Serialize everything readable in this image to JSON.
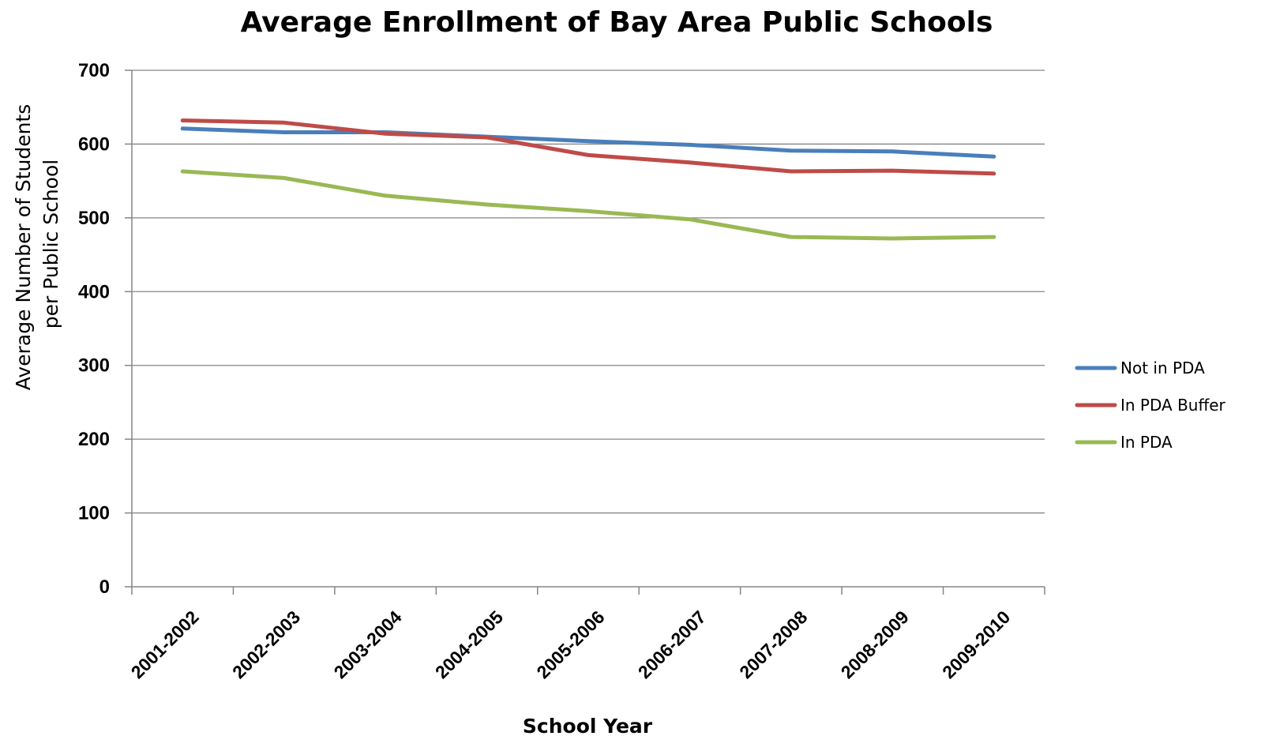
{
  "chart_data": {
    "type": "line",
    "title": "Average Enrollment of Bay Area Public Schools",
    "xlabel": "School Year",
    "ylabel_lines": [
      "Average Number of Students",
      "per Public School"
    ],
    "categories": [
      "2001-2002",
      "2002-2003",
      "2003-2004",
      "2004-2005",
      "2005-2006",
      "2006-2007",
      "2007-2008",
      "2008-2009",
      "2009-2010"
    ],
    "ylim": [
      0,
      700
    ],
    "yticks": [
      "0",
      "100",
      "200",
      "300",
      "400",
      "500",
      "600",
      "700"
    ],
    "grid": true,
    "legend_position": "right",
    "series": [
      {
        "name": "Not in PDA",
        "color": "#4a7ebb",
        "values": [
          621,
          616,
          616,
          610,
          604,
          599,
          591,
          590,
          583
        ]
      },
      {
        "name": "In PDA Buffer",
        "color": "#be4b48",
        "values": [
          632,
          629,
          614,
          609,
          585,
          575,
          563,
          564,
          560
        ]
      },
      {
        "name": "In PDA",
        "color": "#98b954",
        "values": [
          563,
          554,
          530,
          518,
          509,
          498,
          474,
          472,
          474
        ]
      }
    ]
  }
}
